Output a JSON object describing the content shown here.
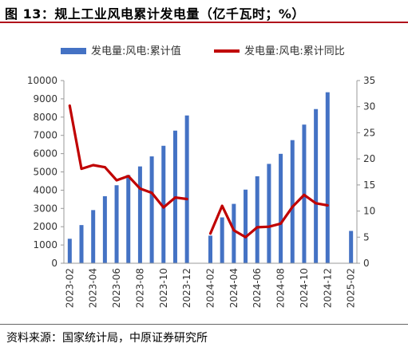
{
  "header": {
    "title": "图 13：规上工业风电累计发电量（亿千瓦时；%）"
  },
  "footer": {
    "source": "资料来源：国家统计局，中原证券研究所"
  },
  "chart_data": {
    "type": "bar",
    "categories": [
      "2023-02",
      "2023-03",
      "2023-04",
      "2023-05",
      "2023-06",
      "2023-07",
      "2023-08",
      "2023-09",
      "2023-10",
      "2023-11",
      "2023-12",
      "2024-01",
      "2024-02",
      "2024-03",
      "2024-04",
      "2024-05",
      "2024-06",
      "2024-07",
      "2024-08",
      "2024-09",
      "2024-10",
      "2024-11",
      "2024-12",
      "2025-01",
      "2025-02"
    ],
    "x_tick_labels": [
      "2023-02",
      "2023-04",
      "2023-06",
      "2023-08",
      "2023-10",
      "2023-12",
      "2024-02",
      "2024-04",
      "2024-06",
      "2024-08",
      "2024-10",
      "2024-12",
      "2025-02"
    ],
    "series": [
      {
        "name": "发电量:风电:累计值",
        "type": "bar",
        "axis": "left",
        "color": "#4472c4",
        "values": [
          1340,
          2090,
          2910,
          3670,
          4270,
          4830,
          5300,
          5850,
          6430,
          7260,
          8090,
          null,
          1510,
          2510,
          3250,
          4030,
          4760,
          5440,
          5990,
          6740,
          7590,
          8440,
          9360,
          null,
          1770
        ]
      },
      {
        "name": "发电量:风电:累计同比",
        "type": "line",
        "axis": "right",
        "color": "#c00000",
        "values": [
          30.2,
          18.1,
          18.8,
          18.4,
          15.9,
          16.7,
          14.3,
          13.5,
          10.7,
          12.6,
          12.3,
          null,
          5.7,
          11.0,
          6.3,
          5.0,
          6.9,
          7.0,
          7.6,
          10.8,
          13.1,
          11.5,
          11.1,
          null,
          10.3
        ]
      }
    ],
    "y_left": {
      "min": 0,
      "max": 10000,
      "ticks": [
        0,
        1000,
        2000,
        3000,
        4000,
        5000,
        6000,
        7000,
        8000,
        9000,
        10000
      ]
    },
    "y_right": {
      "min": 0,
      "max": 35,
      "ticks": [
        0,
        5,
        10,
        15,
        20,
        25,
        30,
        35
      ]
    },
    "legend_position": "top",
    "grid": false
  }
}
